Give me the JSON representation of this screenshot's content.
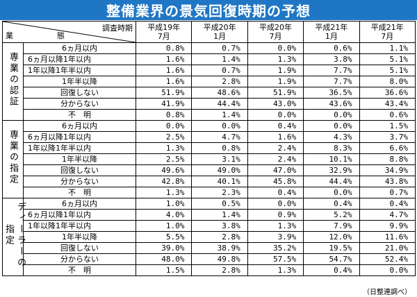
{
  "title": "整備業界の景気回復時期の予想",
  "header": {
    "row_label": "業　態",
    "col_label": "調査時期",
    "columns": [
      {
        "line1": "平成19年",
        "line2": "7月"
      },
      {
        "line1": "平成20年",
        "line2": "1月"
      },
      {
        "line1": "平成20年",
        "line2": "7月"
      },
      {
        "line1": "平成21年",
        "line2": "1月"
      },
      {
        "line1": "平成21年",
        "line2": "7月"
      }
    ]
  },
  "groups": [
    {
      "name": "専業の認証",
      "rows": [
        {
          "label": "6ヵ月以内",
          "values": [
            "0.8%",
            "0.7%",
            "0.0%",
            "0.6%",
            "1.1%"
          ]
        },
        {
          "label": "6ヵ月以降1年以内",
          "values": [
            "1.6%",
            "1.4%",
            "1.3%",
            "3.8%",
            "5.1%"
          ]
        },
        {
          "label": "1年以降1年半以内",
          "values": [
            "1.6%",
            "0.7%",
            "1.9%",
            "7.7%",
            "5.1%"
          ]
        },
        {
          "label": "1年半以降",
          "values": [
            "1.6%",
            "2.8%",
            "1.9%",
            "7.7%",
            "8.0%"
          ]
        },
        {
          "label": "回復しない",
          "values": [
            "51.9%",
            "48.6%",
            "51.9%",
            "36.5%",
            "36.6%"
          ]
        },
        {
          "label": "分からない",
          "values": [
            "41.9%",
            "44.4%",
            "43.0%",
            "43.6%",
            "43.4%"
          ]
        },
        {
          "label": "不　明",
          "values": [
            "0.8%",
            "1.4%",
            "0.0%",
            "0.0%",
            "0.6%"
          ]
        }
      ]
    },
    {
      "name": "専業の指定",
      "rows": [
        {
          "label": "6ヵ月以内",
          "values": [
            "0.0%",
            "0.0%",
            "0.4%",
            "0.0%",
            "1.5%"
          ]
        },
        {
          "label": "6ヵ月以降1年以内",
          "values": [
            "2.5%",
            "4.7%",
            "1.6%",
            "4.3%",
            "3.7%"
          ]
        },
        {
          "label": "1年以降1年半以内",
          "values": [
            "1.3%",
            "0.8%",
            "2.4%",
            "8.3%",
            "6.6%"
          ]
        },
        {
          "label": "1年半以降",
          "values": [
            "2.5%",
            "3.1%",
            "2.4%",
            "10.1%",
            "8.8%"
          ]
        },
        {
          "label": "回復しない",
          "values": [
            "49.6%",
            "49.0%",
            "47.0%",
            "32.9%",
            "34.9%"
          ]
        },
        {
          "label": "分からない",
          "values": [
            "42.8%",
            "40.1%",
            "45.8%",
            "44.4%",
            "43.8%"
          ]
        },
        {
          "label": "不　明",
          "values": [
            "1.3%",
            "2.3%",
            "0.4%",
            "0.0%",
            "0.7%"
          ]
        }
      ]
    },
    {
      "name": "ディーラーの指定",
      "rows": [
        {
          "label": "6ヵ月以内",
          "values": [
            "1.0%",
            "0.5%",
            "0.0%",
            "0.4%",
            "0.4%"
          ]
        },
        {
          "label": "6ヵ月以降1年以内",
          "values": [
            "4.0%",
            "1.4%",
            "0.9%",
            "5.2%",
            "4.7%"
          ]
        },
        {
          "label": "1年以降1年半以内",
          "values": [
            "1.0%",
            "3.8%",
            "1.3%",
            "7.9%",
            "9.9%"
          ]
        },
        {
          "label": "1年半以降",
          "values": [
            "5.5%",
            "2.8%",
            "3.9%",
            "12.0%",
            "11.6%"
          ]
        },
        {
          "label": "回復しない",
          "values": [
            "39.0%",
            "38.9%",
            "35.2%",
            "19.5%",
            "21.0%"
          ]
        },
        {
          "label": "分からない",
          "values": [
            "48.0%",
            "49.8%",
            "57.5%",
            "54.7%",
            "52.4%"
          ]
        },
        {
          "label": "不　明",
          "values": [
            "1.5%",
            "2.8%",
            "1.3%",
            "0.4%",
            "0.0%"
          ]
        }
      ]
    }
  ],
  "source": "（日整連調べ）"
}
